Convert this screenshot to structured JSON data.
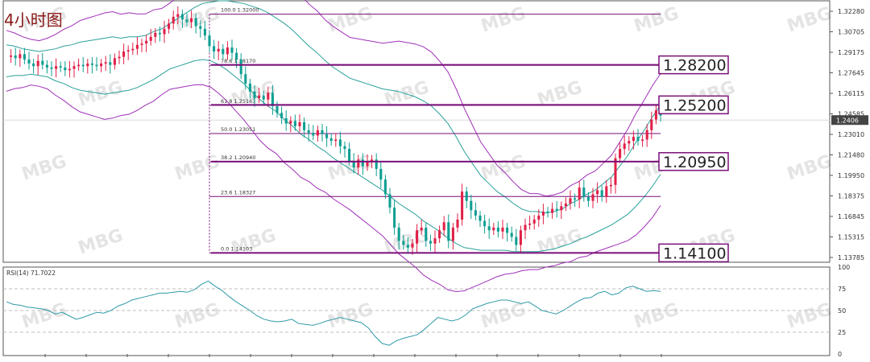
{
  "chart_data": {
    "type": "candlestick",
    "title": "4小时图",
    "price_axis": {
      "ylim": [
        1.134,
        1.327
      ],
      "tick_labels": [
        "1.32280",
        "1.30705",
        "1.29175",
        "1.27645",
        "1.26115",
        "1.24585",
        "1.23010",
        "1.21480",
        "1.19950",
        "1.18375",
        "1.16845",
        "1.15315",
        "1.13785"
      ],
      "current_price_label": "1.2406"
    },
    "fibonacci": {
      "levels": [
        {
          "label": "100.0  1.32000",
          "price": 1.32
        },
        {
          "label": "78.6  1.28170",
          "price": 1.2817
        },
        {
          "label": "61.8  1.25163",
          "price": 1.25163
        },
        {
          "label": "50.0  1.23051",
          "price": 1.23051
        },
        {
          "label": "38.2  1.20940",
          "price": 1.2094
        },
        {
          "label": "23.6  1.18327",
          "price": 1.18327
        },
        {
          "label": "0.0  1.14103",
          "price": 1.14103
        }
      ]
    },
    "key_levels": [
      {
        "label": "1.28200",
        "price": 1.282
      },
      {
        "label": "1.25200",
        "price": 1.252
      },
      {
        "label": "1.20950",
        "price": 1.2095
      },
      {
        "label": "1.14100",
        "price": 1.141
      }
    ],
    "price_path": [
      1.288,
      1.289,
      1.287,
      1.29,
      1.286,
      1.283,
      1.281,
      1.285,
      1.282,
      1.28,
      1.279,
      1.281,
      1.28,
      1.278,
      1.279,
      1.281,
      1.282,
      1.281,
      1.283,
      1.282,
      1.281,
      1.283,
      1.284,
      1.282,
      1.287,
      1.288,
      1.292,
      1.293,
      1.294,
      1.297,
      1.298,
      1.3,
      1.303,
      1.306,
      1.305,
      1.309,
      1.313,
      1.318,
      1.32,
      1.316,
      1.314,
      1.317,
      1.311,
      1.309,
      1.304,
      1.296,
      1.292,
      1.294,
      1.29,
      1.295,
      1.291,
      1.286,
      1.275,
      1.268,
      1.262,
      1.257,
      1.259,
      1.256,
      1.261,
      1.251,
      1.246,
      1.242,
      1.238,
      1.24,
      1.236,
      1.239,
      1.233,
      1.231,
      1.229,
      1.233,
      1.23,
      1.227,
      1.225,
      1.226,
      1.221,
      1.219,
      1.21,
      1.205,
      1.211,
      1.206,
      1.209,
      1.211,
      1.204,
      1.196,
      1.185,
      1.175,
      1.16,
      1.15,
      1.147,
      1.145,
      1.148,
      1.158,
      1.16,
      1.15,
      1.148,
      1.152,
      1.158,
      1.164,
      1.15,
      1.16,
      1.166,
      1.187,
      1.18,
      1.173,
      1.169,
      1.165,
      1.161,
      1.158,
      1.16,
      1.157,
      1.16,
      1.156,
      1.153,
      1.147,
      1.158,
      1.162,
      1.163,
      1.166,
      1.169,
      1.172,
      1.171,
      1.174,
      1.173,
      1.176,
      1.178,
      1.182,
      1.181,
      1.19,
      1.183,
      1.18,
      1.185,
      1.188,
      1.183,
      1.191,
      1.192,
      1.212,
      1.219,
      1.223,
      1.225,
      1.228,
      1.225,
      1.226,
      1.233,
      1.241,
      1.248,
      1.244
    ],
    "bollinger_basis": [
      1.285,
      1.285,
      1.284,
      1.284,
      1.283,
      1.283,
      1.282,
      1.282,
      1.281,
      1.281,
      1.281,
      1.281,
      1.281,
      1.282,
      1.282,
      1.283,
      1.284,
      1.286,
      1.289,
      1.292,
      1.296,
      1.299,
      1.302,
      1.305,
      1.307,
      1.307,
      1.306,
      1.304,
      1.301,
      1.298,
      1.294,
      1.29,
      1.286,
      1.282,
      1.277,
      1.272,
      1.266,
      1.261,
      1.256,
      1.251,
      1.246,
      1.242,
      1.238,
      1.235,
      1.232,
      1.229,
      1.226,
      1.223,
      1.22,
      1.217,
      1.214,
      1.21,
      1.206,
      1.201,
      1.195,
      1.188,
      1.181,
      1.176,
      1.171,
      1.168,
      1.165,
      1.163,
      1.16,
      1.158,
      1.157,
      1.157,
      1.157,
      1.158,
      1.16,
      1.163,
      1.166,
      1.169,
      1.172,
      1.176,
      1.18,
      1.186,
      1.192,
      1.2,
      1.208,
      1.217,
      1.226
    ],
    "bollinger_halfwidth": [
      0.012,
      0.011,
      0.01,
      0.009,
      0.009,
      0.01,
      0.012,
      0.014,
      0.016,
      0.018,
      0.019,
      0.02,
      0.021,
      0.021,
      0.02,
      0.02,
      0.019,
      0.018,
      0.018,
      0.017,
      0.017,
      0.018,
      0.019,
      0.02,
      0.021,
      0.022,
      0.024,
      0.026,
      0.028,
      0.03,
      0.032,
      0.034,
      0.035,
      0.035,
      0.036,
      0.036,
      0.036,
      0.035,
      0.035,
      0.034,
      0.034,
      0.034,
      0.034,
      0.035,
      0.036,
      0.037,
      0.038,
      0.04,
      0.042,
      0.043,
      0.044,
      0.045,
      0.045,
      0.044,
      0.043,
      0.04,
      0.036,
      0.032,
      0.028,
      0.025,
      0.022,
      0.02,
      0.018,
      0.016,
      0.015,
      0.015,
      0.014,
      0.014,
      0.014,
      0.015,
      0.015,
      0.016,
      0.016,
      0.017,
      0.018,
      0.02,
      0.022,
      0.024,
      0.025,
      0.026,
      0.026
    ],
    "rsi": {
      "label": "RSI(14) 71.7022",
      "ylim": [
        0,
        100
      ],
      "tick_labels": [
        "100",
        "75",
        "50",
        "25",
        "0"
      ],
      "values": [
        60,
        57,
        56,
        54,
        53,
        52,
        50,
        46,
        48,
        44,
        40,
        42,
        45,
        48,
        47,
        50,
        55,
        58,
        62,
        64,
        66,
        68,
        70,
        70,
        71,
        72,
        71,
        74,
        80,
        84,
        78,
        73,
        66,
        60,
        55,
        50,
        44,
        40,
        38,
        37,
        38,
        40,
        35,
        34,
        33,
        35,
        38,
        40,
        42,
        40,
        38,
        36,
        30,
        20,
        12,
        10,
        15,
        18,
        20,
        22,
        28,
        35,
        42,
        40,
        38,
        40,
        45,
        52,
        55,
        58,
        60,
        62,
        62,
        60,
        58,
        60,
        55,
        50,
        48,
        46,
        50,
        55,
        60,
        64,
        65,
        70,
        72,
        68,
        70,
        76,
        78,
        75,
        72,
        73,
        72
      ]
    },
    "watermark_brand": "MBG"
  },
  "colors": {
    "bull": "#e02048",
    "bear": "#0e9e92",
    "basis": "#2aa19a",
    "band": "#a030b8",
    "fib": "#7a0f7a",
    "title": "#8b1a1a",
    "grid": "#bfbfbf",
    "axis_text": "#333333",
    "rsi_line": "#2f9aa8",
    "watermark": "#b3b3b3"
  }
}
